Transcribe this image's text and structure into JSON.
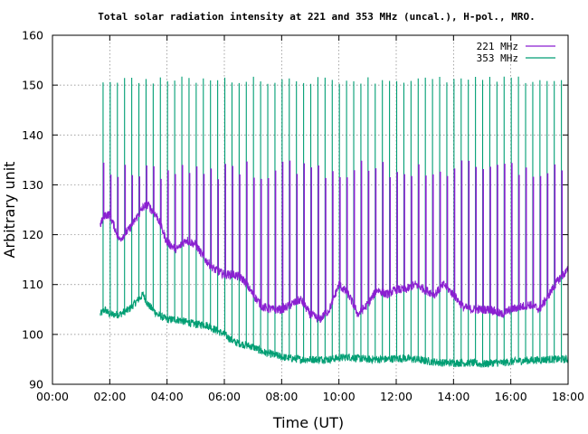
{
  "chart_data": {
    "type": "line",
    "title": "Total solar radiation intensity at 221 and 353 MHz (uncal.), H-pol., MRO.",
    "xlabel": "Time (UT)",
    "ylabel": "Arbitrary unit",
    "xlim": [
      "00:00",
      "18:00"
    ],
    "ylim": [
      90,
      160
    ],
    "x_ticks": [
      "00:00",
      "02:00",
      "04:00",
      "06:00",
      "08:00",
      "10:00",
      "12:00",
      "14:00",
      "16:00",
      "18:00"
    ],
    "y_ticks": [
      90,
      100,
      110,
      120,
      130,
      140,
      150,
      160
    ],
    "grid": true,
    "legend_position": "top-right",
    "data_start": "01:40",
    "data_end": "18:00",
    "spike_interval_minutes": 15,
    "series": [
      {
        "name": "221 MHz",
        "color": "#8a1fd1",
        "spike_peak": 133,
        "x": [
          "01:40",
          "01:50",
          "02:00",
          "02:20",
          "02:40",
          "03:00",
          "03:10",
          "03:20",
          "03:40",
          "04:00",
          "04:20",
          "04:40",
          "05:00",
          "05:20",
          "05:40",
          "06:00",
          "06:20",
          "06:40",
          "07:00",
          "07:20",
          "07:40",
          "08:00",
          "08:20",
          "08:40",
          "09:00",
          "09:20",
          "09:40",
          "10:00",
          "10:20",
          "10:40",
          "11:00",
          "11:20",
          "11:40",
          "12:00",
          "12:20",
          "12:40",
          "13:00",
          "13:20",
          "13:40",
          "14:00",
          "14:20",
          "14:40",
          "15:00",
          "15:20",
          "15:40",
          "16:00",
          "16:20",
          "16:40",
          "17:00",
          "17:20",
          "17:40",
          "18:00"
        ],
        "y": [
          122,
          124,
          124,
          119,
          121,
          124,
          125.5,
          126,
          123.5,
          118.5,
          117,
          119,
          118,
          115,
          113,
          112,
          112,
          111,
          108,
          105.5,
          105,
          105,
          106,
          107,
          104,
          103,
          105,
          110,
          108,
          104,
          106,
          109,
          108,
          109,
          109,
          110,
          109,
          108,
          110,
          108,
          105.5,
          105,
          105,
          105,
          104,
          105,
          105.5,
          106,
          105,
          108,
          111,
          113
        ]
      },
      {
        "name": "353 MHz",
        "color": "#009e73",
        "spike_peak": 151,
        "x": [
          "01:40",
          "01:50",
          "02:00",
          "02:20",
          "02:40",
          "03:00",
          "03:10",
          "03:20",
          "03:40",
          "04:00",
          "04:20",
          "04:40",
          "05:00",
          "05:20",
          "05:40",
          "06:00",
          "06:20",
          "06:40",
          "07:00",
          "07:20",
          "07:40",
          "08:00",
          "08:20",
          "08:40",
          "09:00",
          "09:20",
          "09:40",
          "10:00",
          "10:20",
          "10:40",
          "11:00",
          "11:20",
          "11:40",
          "12:00",
          "12:20",
          "12:40",
          "13:00",
          "13:20",
          "13:40",
          "14:00",
          "14:20",
          "14:40",
          "15:00",
          "15:20",
          "15:40",
          "16:00",
          "16:20",
          "16:40",
          "17:00",
          "17:20",
          "17:40",
          "18:00"
        ],
        "y": [
          104,
          105,
          104,
          104,
          105,
          107,
          108,
          106,
          104,
          103,
          103,
          102.5,
          102,
          102,
          101,
          100,
          98.5,
          98,
          97.5,
          96.5,
          96,
          95.5,
          95.2,
          95,
          95,
          95,
          95,
          95.3,
          95.5,
          95.2,
          95,
          95,
          95,
          95.2,
          95.2,
          95,
          94.7,
          94.5,
          94.3,
          94.3,
          94.3,
          94.3,
          94,
          94.3,
          94.3,
          94.5,
          94.7,
          94.8,
          94.9,
          95,
          95,
          95
        ]
      }
    ]
  }
}
